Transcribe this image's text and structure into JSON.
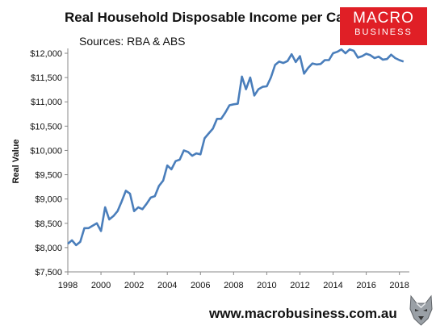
{
  "chart_data": {
    "type": "line",
    "title": "Real Household Disposable Income per Capita",
    "subtitle": "Sources: RBA & ABS",
    "ylabel": "Real Value",
    "xlabel": "",
    "ylim": [
      7500,
      12100
    ],
    "xlim": [
      1998,
      2018.6
    ],
    "y_ticks": [
      7500,
      8000,
      8500,
      9000,
      9500,
      10000,
      10500,
      11000,
      11500,
      12000
    ],
    "y_tick_labels": [
      "$7,500",
      "$8,000",
      "$8,500",
      "$9,000",
      "$9,500",
      "$10,000",
      "$10,500",
      "$11,000",
      "$11,500",
      "$12,000"
    ],
    "x_ticks": [
      1998,
      2000,
      2002,
      2004,
      2006,
      2008,
      2010,
      2012,
      2014,
      2016,
      2018
    ],
    "x_tick_labels": [
      "1998",
      "2000",
      "2002",
      "2004",
      "2006",
      "2008",
      "2010",
      "2012",
      "2014",
      "2016",
      "2018"
    ],
    "grid": false,
    "legend": "none",
    "series": [
      {
        "color": "#4a7ebb",
        "x": [
          1998.0,
          1998.25,
          1998.5,
          1998.75,
          1999.0,
          1999.25,
          1999.5,
          1999.75,
          2000.0,
          2000.25,
          2000.5,
          2000.75,
          2001.0,
          2001.25,
          2001.5,
          2001.75,
          2002.0,
          2002.25,
          2002.5,
          2002.75,
          2003.0,
          2003.25,
          2003.5,
          2003.75,
          2004.0,
          2004.25,
          2004.5,
          2004.75,
          2005.0,
          2005.25,
          2005.5,
          2005.75,
          2006.0,
          2006.25,
          2006.5,
          2006.75,
          2007.0,
          2007.25,
          2007.5,
          2007.75,
          2008.0,
          2008.25,
          2008.5,
          2008.75,
          2009.0,
          2009.25,
          2009.5,
          2009.75,
          2010.0,
          2010.25,
          2010.5,
          2010.75,
          2011.0,
          2011.25,
          2011.5,
          2011.75,
          2012.0,
          2012.25,
          2012.5,
          2012.75,
          2013.0,
          2013.25,
          2013.5,
          2013.75,
          2014.0,
          2014.25,
          2014.5,
          2014.75,
          2015.0,
          2015.25,
          2015.5,
          2015.75,
          2016.0,
          2016.25,
          2016.5,
          2016.75,
          2017.0,
          2017.25,
          2017.5,
          2017.75,
          2018.0,
          2018.25
        ],
        "values": [
          8080,
          8150,
          8050,
          8120,
          8400,
          8400,
          8450,
          8500,
          8340,
          8830,
          8580,
          8650,
          8750,
          8950,
          9170,
          9110,
          8750,
          8830,
          8790,
          8900,
          9030,
          9060,
          9270,
          9380,
          9690,
          9610,
          9780,
          9810,
          10000,
          9970,
          9890,
          9940,
          9920,
          10250,
          10350,
          10450,
          10650,
          10650,
          10780,
          10930,
          10950,
          10960,
          11520,
          11260,
          11500,
          11130,
          11260,
          11310,
          11320,
          11500,
          11760,
          11830,
          11800,
          11840,
          11980,
          11820,
          11940,
          11580,
          11700,
          11790,
          11770,
          11780,
          11860,
          11860,
          12000,
          12030,
          12080,
          12000,
          12080,
          12050,
          11910,
          11940,
          11990,
          11960,
          11900,
          11930,
          11870,
          11880,
          11970,
          11900,
          11860,
          11830
        ]
      }
    ]
  },
  "logo": {
    "line1": "MACRO",
    "line2": "BUSINESS"
  },
  "footer": {
    "website": "www.macrobusiness.com.au"
  },
  "icons": {
    "mascot": "wolf-mascot-icon"
  }
}
